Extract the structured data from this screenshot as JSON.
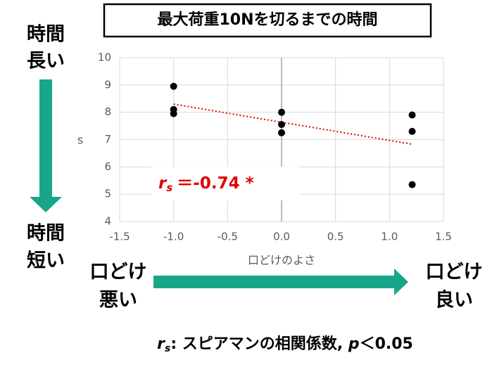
{
  "chart_data": {
    "type": "scatter",
    "title": "最大荷重10Nを切るまでの時間",
    "x_label": "口どけのよさ",
    "y_label": "s",
    "x": [
      -1.0,
      -1.0,
      -1.0,
      0.0,
      0.0,
      0.0,
      1.21,
      1.21,
      1.21
    ],
    "values": [
      8.95,
      8.1,
      7.95,
      8.0,
      7.55,
      7.25,
      7.9,
      7.3,
      5.35
    ],
    "color": "#000000",
    "trendline": {
      "x": [
        -1.0,
        1.21
      ],
      "y": [
        8.3,
        6.83
      ],
      "color": "#e00000"
    },
    "xlim": [
      -1.5,
      1.5
    ],
    "xticks": [
      -1.5,
      {
        "value": -1,
        "label": "-1.0"
      },
      -0.5,
      {
        "value": 0,
        "label": "0.0"
      },
      0.5,
      {
        "value": 1,
        "label": "1.0"
      },
      1.5
    ],
    "ylim": [
      4,
      10
    ],
    "yticks": [
      4,
      5,
      6,
      7,
      8,
      9,
      10
    ],
    "grid": true,
    "correlation": {
      "symbol": "r",
      "subscript": "s",
      "text": "＝-0.74 *"
    },
    "left_top": [
      "時間",
      "長い"
    ],
    "left_bottom": [
      "時間",
      "短い"
    ],
    "bottom_left": [
      "口どけ",
      "悪い"
    ],
    "bottom_right": [
      "口どけ",
      "良い"
    ],
    "footnote": {
      "symbol": "r",
      "subscript": "s",
      "text": ": スピアマンの相関係数, ",
      "p": "p",
      "condition": "＜0.05"
    }
  }
}
